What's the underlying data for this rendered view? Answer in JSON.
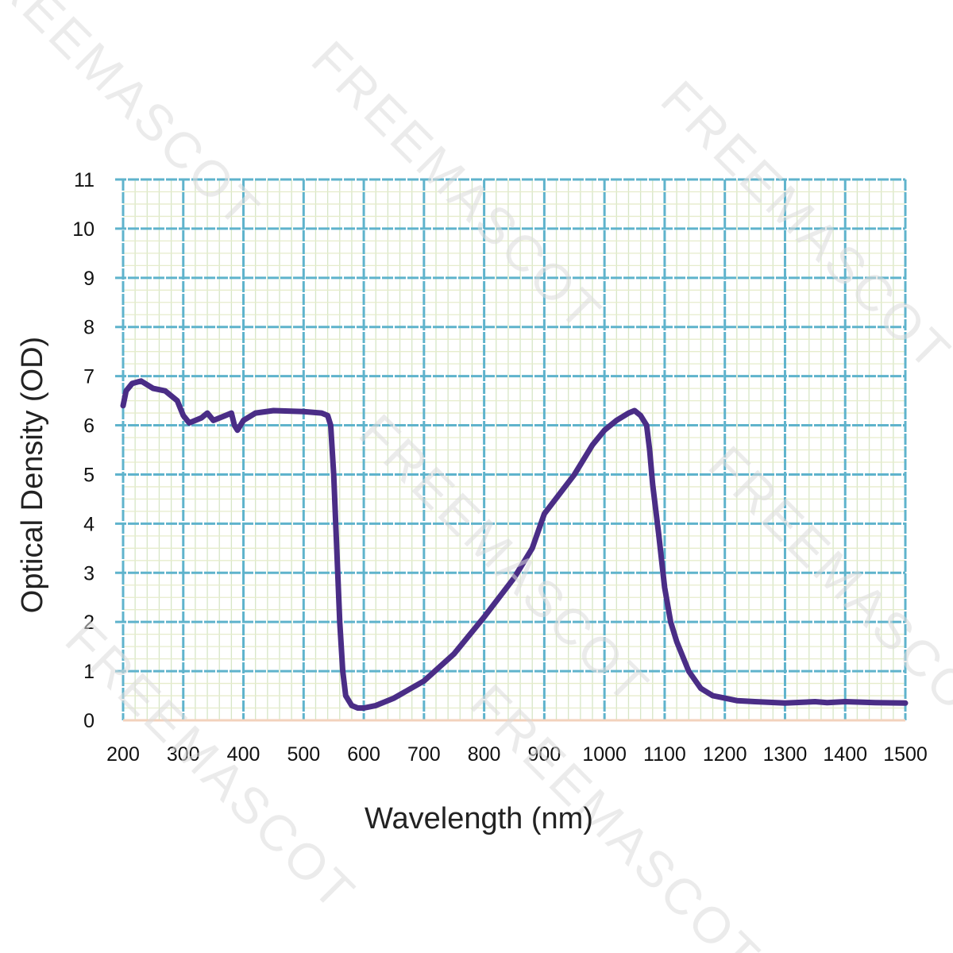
{
  "watermark": "FREEMASCOT",
  "chart_data": {
    "type": "line",
    "title": "",
    "xlabel": "Wavelength (nm)",
    "ylabel": "Optical Density (OD)",
    "xlim": [
      200,
      1500
    ],
    "ylim": [
      0,
      11
    ],
    "xticks": [
      200,
      300,
      400,
      500,
      600,
      700,
      800,
      900,
      1000,
      1100,
      1200,
      1300,
      1400,
      1500
    ],
    "yticks": [
      0,
      1,
      2,
      3,
      4,
      5,
      6,
      7,
      8,
      9,
      10,
      11
    ],
    "grid": true,
    "colors": {
      "line": "#4a2d86",
      "grid_major": "#5fb3cc",
      "grid_minor_x": "#d6e6c6",
      "grid_minor_y": "#e6eccb",
      "baseline": "#f3d2bc"
    },
    "series": [
      {
        "name": "Optical Density",
        "x": [
          200,
          205,
          215,
          230,
          250,
          270,
          290,
          300,
          310,
          330,
          340,
          350,
          370,
          380,
          385,
          390,
          400,
          420,
          450,
          500,
          530,
          540,
          545,
          550,
          555,
          560,
          565,
          570,
          580,
          590,
          600,
          620,
          650,
          700,
          750,
          800,
          850,
          880,
          900,
          950,
          980,
          1000,
          1020,
          1040,
          1050,
          1060,
          1070,
          1075,
          1080,
          1090,
          1100,
          1110,
          1120,
          1140,
          1160,
          1180,
          1200,
          1220,
          1250,
          1300,
          1350,
          1370,
          1400,
          1450,
          1500
        ],
        "y": [
          6.4,
          6.7,
          6.85,
          6.9,
          6.75,
          6.7,
          6.5,
          6.2,
          6.05,
          6.15,
          6.25,
          6.1,
          6.2,
          6.25,
          6.0,
          5.9,
          6.1,
          6.25,
          6.3,
          6.28,
          6.25,
          6.2,
          6.0,
          5.0,
          3.5,
          2.0,
          1.0,
          0.5,
          0.3,
          0.25,
          0.25,
          0.3,
          0.45,
          0.8,
          1.35,
          2.1,
          2.9,
          3.5,
          4.2,
          5.0,
          5.6,
          5.9,
          6.1,
          6.25,
          6.3,
          6.2,
          6.0,
          5.5,
          4.8,
          3.8,
          2.7,
          2.0,
          1.6,
          1.0,
          0.65,
          0.5,
          0.45,
          0.4,
          0.38,
          0.35,
          0.38,
          0.36,
          0.38,
          0.36,
          0.35
        ]
      }
    ]
  }
}
